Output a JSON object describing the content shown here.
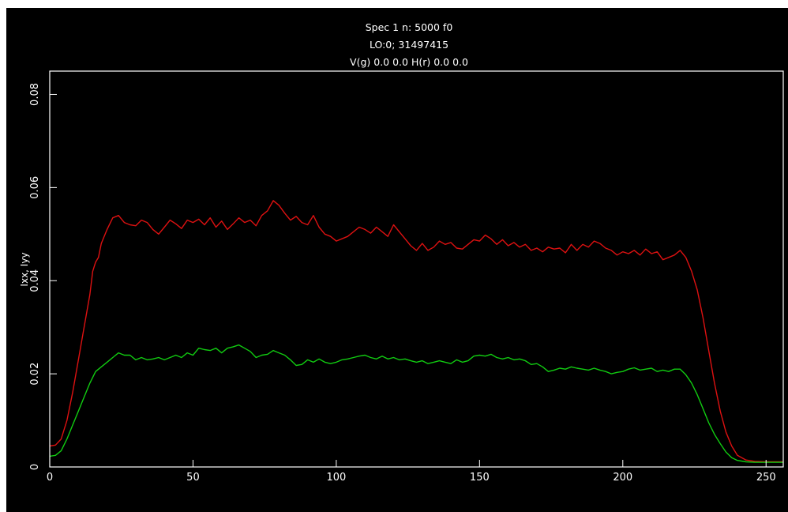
{
  "header": {
    "line1": "Spec 1 n: 5000 f0",
    "line2": "LO:0; 31497415",
    "line3": "V(g) 0.0 0.0 H(r) 0.0 0.0"
  },
  "chart_data": {
    "type": "line",
    "ylabel": "Ixx, Iyy",
    "xlabel": "",
    "xlim": [
      0,
      256
    ],
    "ylim": [
      0,
      0.085
    ],
    "x_ticks": [
      0,
      50,
      100,
      150,
      200,
      250
    ],
    "y_ticks": [
      0,
      0.02,
      0.04,
      0.06,
      0.08
    ],
    "x_tick_labels": [
      "0",
      "50",
      "100",
      "150",
      "200",
      "250"
    ],
    "y_tick_labels": [
      "0",
      "0.02",
      "0.04",
      "0.06",
      "0.08"
    ],
    "grid": false,
    "series": [
      {
        "color": "#dd1111",
        "points": [
          [
            0,
            0.0045
          ],
          [
            2,
            0.0047
          ],
          [
            4,
            0.006
          ],
          [
            6,
            0.01
          ],
          [
            8,
            0.016
          ],
          [
            10,
            0.023
          ],
          [
            12,
            0.03
          ],
          [
            14,
            0.037
          ],
          [
            15,
            0.042
          ],
          [
            16,
            0.044
          ],
          [
            17,
            0.045
          ],
          [
            18,
            0.048
          ],
          [
            20,
            0.051
          ],
          [
            22,
            0.0535
          ],
          [
            24,
            0.054
          ],
          [
            26,
            0.0525
          ],
          [
            28,
            0.052
          ],
          [
            30,
            0.0518
          ],
          [
            32,
            0.053
          ],
          [
            34,
            0.0525
          ],
          [
            36,
            0.051
          ],
          [
            38,
            0.05
          ],
          [
            40,
            0.0515
          ],
          [
            42,
            0.053
          ],
          [
            44,
            0.0522
          ],
          [
            46,
            0.0512
          ],
          [
            48,
            0.053
          ],
          [
            50,
            0.0525
          ],
          [
            52,
            0.0532
          ],
          [
            54,
            0.052
          ],
          [
            56,
            0.0535
          ],
          [
            58,
            0.0515
          ],
          [
            60,
            0.0528
          ],
          [
            62,
            0.051
          ],
          [
            64,
            0.0522
          ],
          [
            66,
            0.0535
          ],
          [
            68,
            0.0525
          ],
          [
            70,
            0.053
          ],
          [
            72,
            0.0518
          ],
          [
            74,
            0.054
          ],
          [
            76,
            0.055
          ],
          [
            78,
            0.0572
          ],
          [
            80,
            0.0562
          ],
          [
            82,
            0.0545
          ],
          [
            84,
            0.053
          ],
          [
            86,
            0.0538
          ],
          [
            88,
            0.0525
          ],
          [
            90,
            0.052
          ],
          [
            92,
            0.054
          ],
          [
            94,
            0.0515
          ],
          [
            96,
            0.05
          ],
          [
            98,
            0.0495
          ],
          [
            100,
            0.0485
          ],
          [
            102,
            0.049
          ],
          [
            104,
            0.0495
          ],
          [
            106,
            0.0505
          ],
          [
            108,
            0.0515
          ],
          [
            110,
            0.051
          ],
          [
            112,
            0.0502
          ],
          [
            114,
            0.0515
          ],
          [
            116,
            0.0505
          ],
          [
            118,
            0.0495
          ],
          [
            120,
            0.052
          ],
          [
            122,
            0.0505
          ],
          [
            124,
            0.049
          ],
          [
            126,
            0.0475
          ],
          [
            128,
            0.0465
          ],
          [
            130,
            0.048
          ],
          [
            132,
            0.0465
          ],
          [
            134,
            0.0472
          ],
          [
            136,
            0.0485
          ],
          [
            138,
            0.0478
          ],
          [
            140,
            0.0482
          ],
          [
            142,
            0.047
          ],
          [
            144,
            0.0468
          ],
          [
            146,
            0.0478
          ],
          [
            148,
            0.0488
          ],
          [
            150,
            0.0485
          ],
          [
            152,
            0.0498
          ],
          [
            154,
            0.049
          ],
          [
            156,
            0.0478
          ],
          [
            158,
            0.0488
          ],
          [
            160,
            0.0475
          ],
          [
            162,
            0.0482
          ],
          [
            164,
            0.0472
          ],
          [
            166,
            0.0478
          ],
          [
            168,
            0.0465
          ],
          [
            170,
            0.047
          ],
          [
            172,
            0.0462
          ],
          [
            174,
            0.0472
          ],
          [
            176,
            0.0468
          ],
          [
            178,
            0.047
          ],
          [
            180,
            0.046
          ],
          [
            182,
            0.0478
          ],
          [
            184,
            0.0465
          ],
          [
            186,
            0.0478
          ],
          [
            188,
            0.0472
          ],
          [
            190,
            0.0485
          ],
          [
            192,
            0.048
          ],
          [
            194,
            0.047
          ],
          [
            196,
            0.0465
          ],
          [
            198,
            0.0455
          ],
          [
            200,
            0.0462
          ],
          [
            202,
            0.0458
          ],
          [
            204,
            0.0465
          ],
          [
            206,
            0.0455
          ],
          [
            208,
            0.0468
          ],
          [
            210,
            0.0458
          ],
          [
            212,
            0.0462
          ],
          [
            214,
            0.0445
          ],
          [
            216,
            0.045
          ],
          [
            218,
            0.0455
          ],
          [
            220,
            0.0465
          ],
          [
            222,
            0.045
          ],
          [
            224,
            0.042
          ],
          [
            226,
            0.038
          ],
          [
            228,
            0.032
          ],
          [
            230,
            0.025
          ],
          [
            232,
            0.018
          ],
          [
            234,
            0.012
          ],
          [
            236,
            0.0075
          ],
          [
            238,
            0.0045
          ],
          [
            240,
            0.0025
          ],
          [
            243,
            0.0015
          ],
          [
            246,
            0.0012
          ],
          [
            250,
            0.0011
          ],
          [
            256,
            0.0011
          ]
        ]
      },
      {
        "color": "#11cc11",
        "points": [
          [
            0,
            0.0023
          ],
          [
            2,
            0.0025
          ],
          [
            4,
            0.0035
          ],
          [
            6,
            0.006
          ],
          [
            8,
            0.009
          ],
          [
            10,
            0.012
          ],
          [
            12,
            0.015
          ],
          [
            14,
            0.018
          ],
          [
            16,
            0.0205
          ],
          [
            18,
            0.0215
          ],
          [
            20,
            0.0225
          ],
          [
            22,
            0.0235
          ],
          [
            24,
            0.0245
          ],
          [
            26,
            0.024
          ],
          [
            28,
            0.024
          ],
          [
            30,
            0.023
          ],
          [
            32,
            0.0235
          ],
          [
            34,
            0.023
          ],
          [
            36,
            0.0232
          ],
          [
            38,
            0.0235
          ],
          [
            40,
            0.023
          ],
          [
            42,
            0.0235
          ],
          [
            44,
            0.024
          ],
          [
            46,
            0.0235
          ],
          [
            48,
            0.0245
          ],
          [
            50,
            0.024
          ],
          [
            52,
            0.0255
          ],
          [
            54,
            0.0252
          ],
          [
            56,
            0.025
          ],
          [
            58,
            0.0255
          ],
          [
            60,
            0.0245
          ],
          [
            62,
            0.0255
          ],
          [
            64,
            0.0258
          ],
          [
            66,
            0.0262
          ],
          [
            68,
            0.0255
          ],
          [
            70,
            0.0248
          ],
          [
            72,
            0.0235
          ],
          [
            74,
            0.024
          ],
          [
            76,
            0.0242
          ],
          [
            78,
            0.025
          ],
          [
            80,
            0.0245
          ],
          [
            82,
            0.024
          ],
          [
            84,
            0.023
          ],
          [
            86,
            0.0218
          ],
          [
            88,
            0.022
          ],
          [
            90,
            0.023
          ],
          [
            92,
            0.0225
          ],
          [
            94,
            0.0232
          ],
          [
            96,
            0.0225
          ],
          [
            98,
            0.0222
          ],
          [
            100,
            0.0225
          ],
          [
            102,
            0.023
          ],
          [
            104,
            0.0232
          ],
          [
            106,
            0.0235
          ],
          [
            108,
            0.0238
          ],
          [
            110,
            0.024
          ],
          [
            112,
            0.0235
          ],
          [
            114,
            0.0232
          ],
          [
            116,
            0.0238
          ],
          [
            118,
            0.0232
          ],
          [
            120,
            0.0235
          ],
          [
            122,
            0.023
          ],
          [
            124,
            0.0232
          ],
          [
            126,
            0.0228
          ],
          [
            128,
            0.0225
          ],
          [
            130,
            0.0228
          ],
          [
            132,
            0.0222
          ],
          [
            134,
            0.0225
          ],
          [
            136,
            0.0228
          ],
          [
            138,
            0.0225
          ],
          [
            140,
            0.0222
          ],
          [
            142,
            0.023
          ],
          [
            144,
            0.0225
          ],
          [
            146,
            0.0228
          ],
          [
            148,
            0.0238
          ],
          [
            150,
            0.024
          ],
          [
            152,
            0.0238
          ],
          [
            154,
            0.0242
          ],
          [
            156,
            0.0235
          ],
          [
            158,
            0.0232
          ],
          [
            160,
            0.0235
          ],
          [
            162,
            0.023
          ],
          [
            164,
            0.0232
          ],
          [
            166,
            0.0228
          ],
          [
            168,
            0.022
          ],
          [
            170,
            0.0222
          ],
          [
            172,
            0.0215
          ],
          [
            174,
            0.0205
          ],
          [
            176,
            0.0208
          ],
          [
            178,
            0.0212
          ],
          [
            180,
            0.021
          ],
          [
            182,
            0.0215
          ],
          [
            184,
            0.0212
          ],
          [
            186,
            0.021
          ],
          [
            188,
            0.0208
          ],
          [
            190,
            0.0212
          ],
          [
            192,
            0.0208
          ],
          [
            194,
            0.0205
          ],
          [
            196,
            0.02
          ],
          [
            198,
            0.0203
          ],
          [
            200,
            0.0205
          ],
          [
            202,
            0.021
          ],
          [
            204,
            0.0213
          ],
          [
            206,
            0.0208
          ],
          [
            208,
            0.021
          ],
          [
            210,
            0.0212
          ],
          [
            212,
            0.0205
          ],
          [
            214,
            0.0208
          ],
          [
            216,
            0.0205
          ],
          [
            218,
            0.021
          ],
          [
            220,
            0.021
          ],
          [
            222,
            0.0198
          ],
          [
            224,
            0.018
          ],
          [
            226,
            0.0155
          ],
          [
            228,
            0.0125
          ],
          [
            230,
            0.0095
          ],
          [
            232,
            0.007
          ],
          [
            234,
            0.005
          ],
          [
            236,
            0.0032
          ],
          [
            238,
            0.002
          ],
          [
            240,
            0.0014
          ],
          [
            243,
            0.0011
          ],
          [
            246,
            0.001
          ],
          [
            256,
            0.001
          ]
        ]
      }
    ]
  }
}
